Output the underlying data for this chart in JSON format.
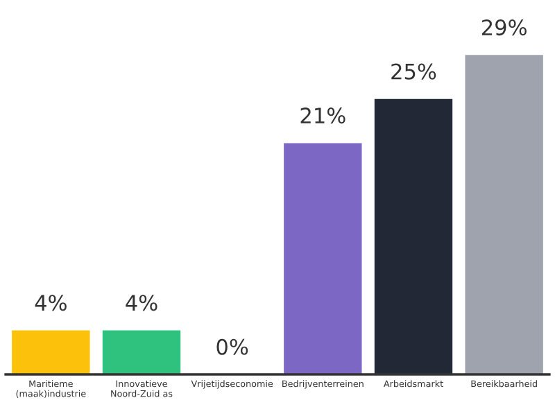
{
  "chart_data": {
    "type": "bar",
    "categories": [
      "Maritieme (maak)industrie",
      "Innovatieve Noord-Zuid as",
      "Vrijetijdseconomie",
      "Bedrijventerreinen",
      "Arbeidsmarkt",
      "Bereikbaarheid"
    ],
    "values": [
      4,
      4,
      0,
      21,
      25,
      29
    ],
    "value_labels": [
      "4%",
      "4%",
      "0%",
      "21%",
      "25%",
      "29%"
    ],
    "colors": [
      "#fcc10a",
      "#2ec27e",
      "#b0b4bd",
      "#7c68c4",
      "#222835",
      "#9ea3ae"
    ]
  }
}
